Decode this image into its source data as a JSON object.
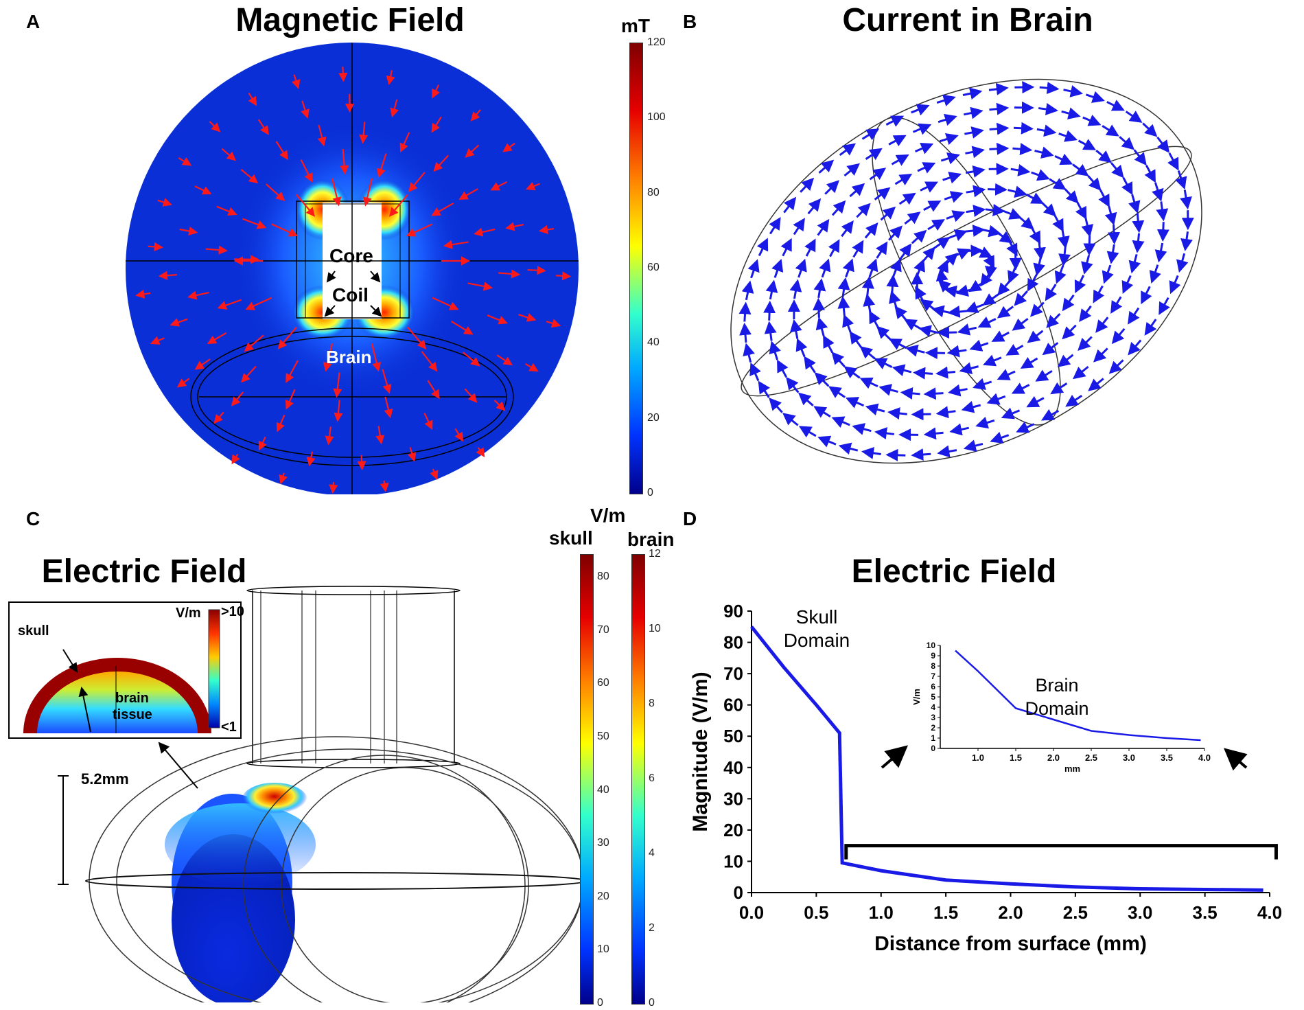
{
  "panels": {
    "a": {
      "letter": "A",
      "title": "Magnetic Field",
      "labels": {
        "core": "Core",
        "coil": "Coil",
        "brain": "Brain"
      },
      "colorbar": {
        "unit": "mT",
        "ticks": [
          "120",
          "100",
          "80",
          "60",
          "40",
          "20",
          "0"
        ]
      }
    },
    "b": {
      "letter": "B",
      "title": "Current in Brain"
    },
    "c": {
      "letter": "C",
      "title": "Electric Field",
      "unit": "V/m",
      "skull_label": "skull",
      "brain_label": "brain",
      "skull_ticks": [
        "80",
        "70",
        "60",
        "50",
        "40",
        "30",
        "20",
        "10",
        "0"
      ],
      "brain_ticks": [
        "12",
        "10",
        "8",
        "6",
        "4",
        "2",
        "0"
      ],
      "inset": {
        "unit": "V/m",
        "top": ">10",
        "bottom": "<1",
        "skull": "skull",
        "brain": "brain",
        "tissue": "tissue"
      },
      "scale_label": "5.2mm"
    },
    "d": {
      "letter": "D",
      "title": "Electric Field",
      "skull_domain": [
        "Skull",
        "Domain"
      ],
      "brain_domain": [
        "Brain",
        "Domain"
      ]
    }
  },
  "chart_data": [
    {
      "type": "line",
      "title": "Electric Field",
      "xlabel": "Distance from surface (mm)",
      "ylabel": "Magnitude (V/m)",
      "xlim": [
        0,
        4.0
      ],
      "ylim": [
        0,
        90
      ],
      "xticks": [
        "0.0",
        "0.5",
        "1.0",
        "1.5",
        "2.0",
        "2.5",
        "3.0",
        "3.5",
        "4.0"
      ],
      "yticks": [
        "0",
        "10",
        "20",
        "30",
        "40",
        "50",
        "60",
        "70",
        "80",
        "90"
      ],
      "series": [
        {
          "color": "#1a1ae6",
          "x": [
            0.0,
            0.25,
            0.5,
            0.68,
            0.68,
            0.7,
            1.0,
            1.5,
            2.0,
            2.5,
            3.0,
            3.5,
            3.95
          ],
          "y": [
            85,
            72,
            60,
            51,
            50,
            9.5,
            7,
            4,
            2.8,
            1.8,
            1.2,
            1.0,
            0.8
          ]
        }
      ]
    },
    {
      "type": "line",
      "xlabel": "mm",
      "ylabel": "V/m",
      "xlim": [
        0.5,
        4.0
      ],
      "ylim": [
        0,
        10
      ],
      "xticks": [
        "1.0",
        "1.5",
        "2.0",
        "2.5",
        "3.0",
        "3.5",
        "4.0"
      ],
      "yticks": [
        "0",
        "1",
        "2",
        "3",
        "4",
        "5",
        "6",
        "7",
        "8",
        "9",
        "10"
      ],
      "series": [
        {
          "color": "#1a1ae6",
          "x": [
            0.7,
            1.0,
            1.5,
            2.0,
            2.5,
            3.0,
            3.5,
            3.95
          ],
          "y": [
            9.5,
            7.5,
            3.9,
            2.8,
            1.7,
            1.3,
            1.0,
            0.8
          ]
        }
      ]
    }
  ]
}
